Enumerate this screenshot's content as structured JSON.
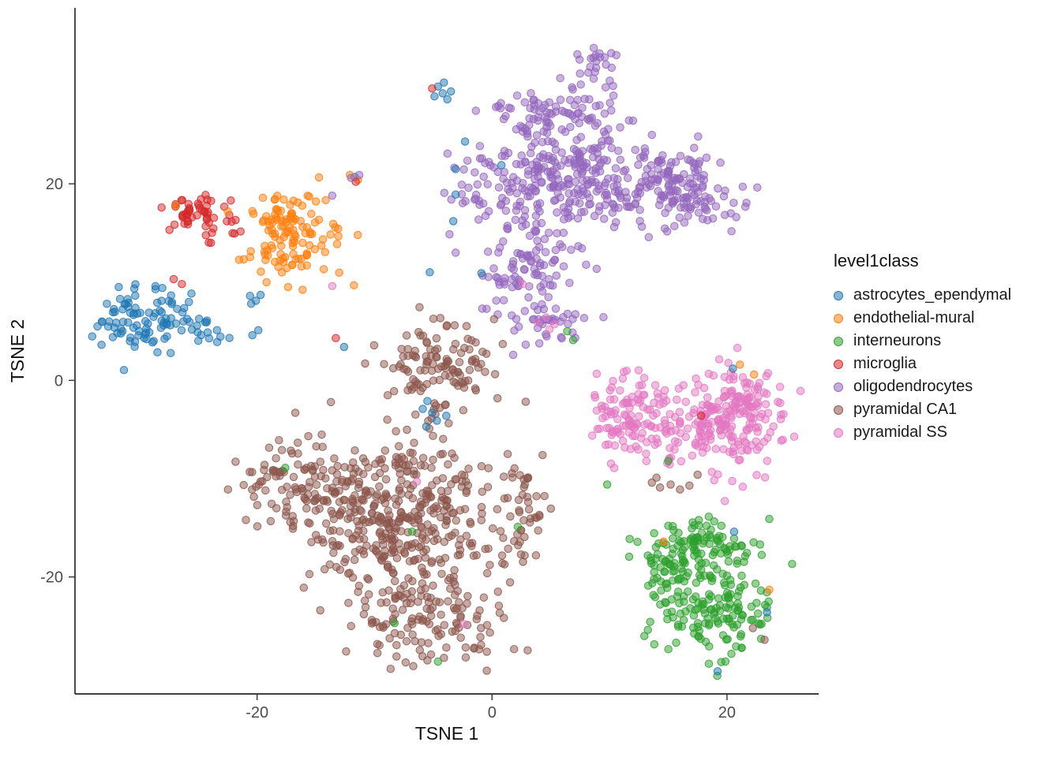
{
  "chart_data": {
    "type": "scatter",
    "title": "",
    "xlabel": "TSNE 1",
    "ylabel": "TSNE 2",
    "xlim": [
      -35.5,
      27.8
    ],
    "ylim": [
      -31.9,
      37.9
    ],
    "xticks": [
      -20,
      0,
      20
    ],
    "yticks": [
      -20,
      0,
      20
    ],
    "grid": false,
    "legend_title": "level1class",
    "legend_position": "right",
    "seed": 42,
    "point_radius": 4.7,
    "series": [
      {
        "name": "astrocytes_ependymal",
        "color": "#1f77b4",
        "clusters": [
          {
            "n": 95,
            "cx": -29.8,
            "cy": 6.3,
            "sx": 2.3,
            "sy": 1.6
          },
          {
            "n": 12,
            "cx": -24.6,
            "cy": 4.9,
            "sx": 1.3,
            "sy": 0.9
          }
        ],
        "points": [
          [
            -20.6,
            8.6
          ],
          [
            -20.1,
            8.1
          ],
          [
            -19.7,
            8.7
          ],
          [
            -20.5,
            7.8
          ],
          [
            -19.9,
            5.1
          ],
          [
            -20.4,
            4.6
          ],
          [
            -23.4,
            3.9
          ],
          [
            -12.6,
            3.4
          ],
          [
            -4.6,
            29.9
          ],
          [
            -4.2,
            29.2
          ],
          [
            -3.8,
            28.6
          ],
          [
            -4.9,
            28.9
          ],
          [
            -4.1,
            30.3
          ],
          [
            -3.5,
            29.4
          ],
          [
            -3.1,
            21.5
          ],
          [
            -2.3,
            24.3
          ],
          [
            -3.1,
            18.9
          ],
          [
            -3.3,
            16.2
          ],
          [
            -5.5,
            -2.1
          ],
          [
            -5.9,
            -2.9
          ],
          [
            -5.1,
            -3.3
          ],
          [
            -4.7,
            -4.1
          ],
          [
            -5.6,
            -4.7
          ],
          [
            -3.9,
            -3.6
          ],
          [
            -11.7,
            20.7
          ],
          [
            0.8,
            21.9
          ],
          [
            20.5,
            1.2
          ],
          [
            23.4,
            -23.6
          ],
          [
            19.2,
            -29.6
          ],
          [
            20.6,
            -15.4
          ],
          [
            -0.9,
            10.9
          ],
          [
            -5.3,
            11.0
          ]
        ]
      },
      {
        "name": "endothelial-mural",
        "color": "#ff7f0e",
        "clusters": [
          {
            "n": 100,
            "cx": -17.0,
            "cy": 14.6,
            "sx": 2.0,
            "sy": 2.1
          },
          {
            "n": 25,
            "cx": -17.5,
            "cy": 17.0,
            "sx": 1.3,
            "sy": 0.8
          }
        ],
        "points": [
          [
            -22.5,
            17.2
          ],
          [
            -26.9,
            17.8
          ],
          [
            -12.1,
            20.9
          ],
          [
            -11.4,
            20.4
          ],
          [
            21.1,
            1.6
          ],
          [
            22.3,
            0.6
          ],
          [
            14.6,
            -16.4
          ],
          [
            23.6,
            -21.3
          ]
        ]
      },
      {
        "name": "interneurons",
        "color": "#2ca02c",
        "clusters": [
          {
            "n": 90,
            "cx": 17.5,
            "cy": -16.8,
            "sx": 2.4,
            "sy": 1.3
          },
          {
            "n": 160,
            "cx": 18.5,
            "cy": -23.0,
            "sx": 2.6,
            "sy": 2.6
          },
          {
            "n": 30,
            "cx": 14.2,
            "cy": -20.5,
            "sx": 1.0,
            "sy": 2.2
          }
        ],
        "points": [
          [
            -17.6,
            -8.9
          ],
          [
            -8.3,
            -24.7
          ],
          [
            -4.6,
            -28.6
          ],
          [
            -6.8,
            -15.4
          ],
          [
            6.4,
            5.0
          ],
          [
            6.9,
            4.1
          ],
          [
            15.0,
            -8.2
          ],
          [
            9.8,
            -10.6
          ],
          [
            2.2,
            -14.9
          ],
          [
            23.6,
            -14.1
          ]
        ]
      },
      {
        "name": "microglia",
        "color": "#d62728",
        "clusters": [
          {
            "n": 48,
            "cx": -25.3,
            "cy": 17.3,
            "sx": 1.4,
            "sy": 1.1
          },
          {
            "n": 8,
            "cx": -23.2,
            "cy": 15.3,
            "sx": 0.8,
            "sy": 0.7
          }
        ],
        "points": [
          [
            -27.1,
            10.3
          ],
          [
            -26.4,
            9.8
          ],
          [
            -13.3,
            4.3
          ],
          [
            -5.1,
            29.7
          ],
          [
            -11.6,
            20.2
          ],
          [
            17.8,
            -3.6
          ]
        ]
      },
      {
        "name": "oligodendrocytes",
        "color": "#9467bd",
        "clusters": [
          {
            "n": 22,
            "cx": 9.0,
            "cy": 32.3,
            "sx": 1.1,
            "sy": 1.0
          },
          {
            "n": 50,
            "cx": 3.5,
            "cy": 27.2,
            "sx": 2.2,
            "sy": 1.3
          },
          {
            "n": 25,
            "cx": 8.5,
            "cy": 27.5,
            "sx": 1.5,
            "sy": 1.5
          },
          {
            "n": 300,
            "cx": 7.0,
            "cy": 20.5,
            "sx": 4.0,
            "sy": 2.8
          },
          {
            "n": 80,
            "cx": 16.8,
            "cy": 18.4,
            "sx": 2.2,
            "sy": 1.6
          },
          {
            "n": 45,
            "cx": 15.5,
            "cy": 21.5,
            "sx": 1.8,
            "sy": 1.4
          },
          {
            "n": 90,
            "cx": 3.0,
            "cy": 11.0,
            "sx": 2.0,
            "sy": 2.4
          },
          {
            "n": 35,
            "cx": 4.5,
            "cy": 6.2,
            "sx": 1.8,
            "sy": 1.1
          },
          {
            "n": 20,
            "cx": -1.5,
            "cy": 18.0,
            "sx": 1.3,
            "sy": 3.5
          }
        ],
        "points": [
          [
            -11.3,
            20.9
          ],
          [
            -12.0,
            20.6
          ],
          [
            -13.6,
            18.8
          ],
          [
            -3.1,
            13.0
          ],
          [
            1.8,
            2.6
          ]
        ]
      },
      {
        "name": "pyramidal CA1",
        "color": "#8c564b",
        "clusters": [
          {
            "n": 120,
            "cx": -4.2,
            "cy": 1.5,
            "sx": 2.4,
            "sy": 2.5
          },
          {
            "n": 90,
            "cx": -17.0,
            "cy": -10.5,
            "sx": 2.2,
            "sy": 2.2
          },
          {
            "n": 420,
            "cx": -8.0,
            "cy": -13.5,
            "sx": 4.2,
            "sy": 3.8
          },
          {
            "n": 130,
            "cx": -5.5,
            "cy": -24.5,
            "sx": 3.0,
            "sy": 2.2
          },
          {
            "n": 40,
            "cx": 2.5,
            "cy": -13.0,
            "sx": 1.3,
            "sy": 2.4
          }
        ],
        "points": [
          [
            13.6,
            -10.4
          ],
          [
            14.3,
            -10.9
          ],
          [
            15.2,
            -10.6
          ],
          [
            16.0,
            -11.1
          ],
          [
            16.8,
            -10.7
          ],
          [
            14.0,
            -9.9
          ],
          [
            17.5,
            -9.6
          ],
          [
            23.2,
            -26.4
          ],
          [
            22.2,
            -25.2
          ],
          [
            4.3,
            -7.6
          ]
        ]
      },
      {
        "name": "pyramidal SS",
        "color": "#e377c2",
        "clusters": [
          {
            "n": 110,
            "cx": 11.5,
            "cy": -4.0,
            "sx": 1.7,
            "sy": 2.5
          },
          {
            "n": 200,
            "cx": 19.3,
            "cy": -4.3,
            "sx": 2.8,
            "sy": 2.5
          },
          {
            "n": 40,
            "cx": 21.5,
            "cy": -1.5,
            "sx": 1.8,
            "sy": 1.2
          }
        ],
        "points": [
          [
            4.6,
            6.4
          ],
          [
            5.3,
            5.7
          ],
          [
            3.9,
            5.9
          ],
          [
            4.9,
            5.2
          ],
          [
            -13.6,
            9.6
          ],
          [
            -6.4,
            -10.3
          ],
          [
            -2.4,
            -24.8
          ],
          [
            2.6,
            9.8
          ]
        ]
      }
    ]
  }
}
